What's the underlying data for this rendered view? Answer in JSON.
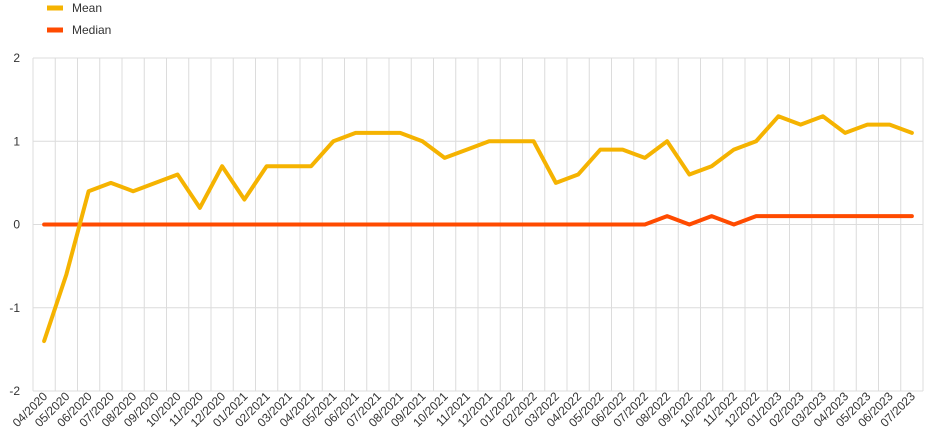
{
  "chart_data": {
    "type": "line",
    "categories": [
      "04/2020",
      "05/2020",
      "06/2020",
      "07/2020",
      "08/2020",
      "09/2020",
      "10/2020",
      "11/2020",
      "12/2020",
      "01/2021",
      "02/2021",
      "03/2021",
      "04/2021",
      "05/2021",
      "06/2021",
      "07/2021",
      "08/2021",
      "09/2021",
      "10/2021",
      "11/2021",
      "12/2021",
      "01/2022",
      "02/2022",
      "03/2022",
      "04/2022",
      "05/2022",
      "06/2022",
      "07/2022",
      "08/2022",
      "09/2022",
      "10/2022",
      "11/2022",
      "12/2022",
      "01/2023",
      "02/2023",
      "03/2023",
      "04/2023",
      "05/2023",
      "06/2023",
      "07/2023"
    ],
    "series": [
      {
        "name": "Mean",
        "color": "#f5b301",
        "values": [
          -1.4,
          -0.6,
          0.4,
          0.5,
          0.4,
          0.5,
          0.6,
          0.2,
          0.7,
          0.3,
          0.7,
          0.7,
          0.7,
          1.0,
          1.1,
          1.1,
          1.1,
          1.0,
          0.8,
          0.9,
          1.0,
          1.0,
          1.0,
          0.5,
          0.6,
          0.9,
          0.9,
          0.8,
          1.0,
          0.6,
          0.7,
          0.9,
          1.0,
          1.3,
          1.2,
          1.3,
          1.1,
          1.2,
          1.2,
          1.1
        ]
      },
      {
        "name": "Median",
        "color": "#ff4b00",
        "values": [
          0,
          0,
          0,
          0,
          0,
          0,
          0,
          0,
          0,
          0,
          0,
          0,
          0,
          0,
          0,
          0,
          0,
          0,
          0,
          0,
          0,
          0,
          0,
          0,
          0,
          0,
          0,
          0,
          0.1,
          0,
          0.1,
          0,
          0.1,
          0.1,
          0.1,
          0.1,
          0.1,
          0.1,
          0.1,
          0.1
        ]
      }
    ],
    "yticks": [
      "2",
      "1",
      "0",
      "-1",
      "-2"
    ],
    "ylim": [
      -2,
      2
    ],
    "grid": true,
    "legend_position": "top-left"
  }
}
